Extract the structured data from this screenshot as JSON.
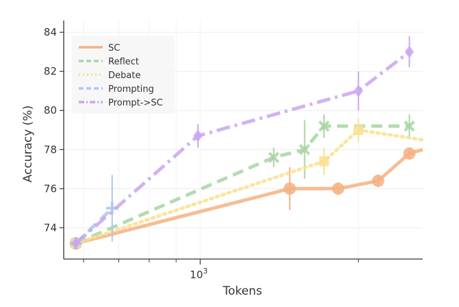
{
  "chart_data": {
    "type": "line",
    "xlabel": "Tokens",
    "ylabel": "Accuracy (%)",
    "xscale": "log",
    "xlim": [
      550,
      2650
    ],
    "ylim": [
      72.4,
      84.6
    ],
    "x_major_tick": {
      "value": 1000,
      "base": "10",
      "exp": "3"
    },
    "x_minor_ticks": [
      600,
      700,
      800,
      900,
      2000
    ],
    "y_ticks": [
      74,
      76,
      78,
      80,
      82,
      84
    ],
    "grid": true,
    "legend_placement": "top-left",
    "series": [
      {
        "name": "SC",
        "color": "#f4b183",
        "dash": "solid",
        "marker": "circle",
        "points": [
          {
            "x": 580,
            "y": 73.2,
            "err": 0.3
          },
          {
            "x": 1480,
            "y": 76.0,
            "err": 1.1
          },
          {
            "x": 1830,
            "y": 76.0,
            "err": 0.3
          },
          {
            "x": 2180,
            "y": 76.4,
            "err": 0.3
          },
          {
            "x": 2500,
            "y": 77.8,
            "err": 0.3
          },
          {
            "x": 2650,
            "y": 78.0
          }
        ]
      },
      {
        "name": "Reflect",
        "color": "#a8d5a2",
        "dash": "dash",
        "marker": "x",
        "points": [
          {
            "x": 580,
            "y": 73.2,
            "err": 0.3
          },
          {
            "x": 1380,
            "y": 77.6,
            "err": 0.5
          },
          {
            "x": 1580,
            "y": 78.0,
            "err": 1.5
          },
          {
            "x": 1720,
            "y": 79.2,
            "err": 0.6
          },
          {
            "x": 2500,
            "y": 79.2,
            "err": 0.6
          }
        ]
      },
      {
        "name": "Debate",
        "color": "#f9e08f",
        "dash": "dot",
        "marker": "square",
        "points": [
          {
            "x": 580,
            "y": 73.2,
            "err": 0.3
          },
          {
            "x": 1720,
            "y": 77.4,
            "err": 0.7
          },
          {
            "x": 2000,
            "y": 79.0,
            "err": 0.6
          },
          {
            "x": 2650,
            "y": 78.5
          }
        ]
      },
      {
        "name": "Prompting",
        "color": "#aac7f0",
        "dash": "dash",
        "marker": "plus",
        "points": [
          {
            "x": 580,
            "y": 73.2,
            "err": 0.3
          },
          {
            "x": 680,
            "y": 75.0,
            "err": 1.7
          }
        ]
      },
      {
        "name": "Prompt->SC",
        "color": "#c9a6ee",
        "dash": "dashdot",
        "marker": "diamond",
        "points": [
          {
            "x": 580,
            "y": 73.2,
            "err": 0.3
          },
          {
            "x": 990,
            "y": 78.7,
            "err": 0.6
          },
          {
            "x": 2000,
            "y": 81.0,
            "err": 1.0
          },
          {
            "x": 2500,
            "y": 83.0,
            "err": 0.8
          }
        ]
      }
    ]
  }
}
